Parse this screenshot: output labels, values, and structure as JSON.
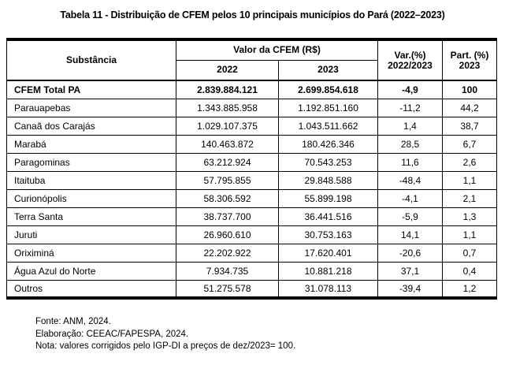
{
  "title": "Tabela 11 - Distribuição de CFEM pelos 10 principais municípios do Pará (2022–2023)",
  "table": {
    "headers": {
      "substance": "Substância",
      "value_group": "Valor da CFEM (R$)",
      "year_2022": "2022",
      "year_2023": "2023",
      "variation_line1": "Var.(%)",
      "variation_line2": "2022/2023",
      "participation_line1": "Part. (%)",
      "participation_line2": "2023"
    },
    "rows": [
      {
        "substance": "CFEM Total PA",
        "value_2022": "2.839.884.121",
        "value_2023": "2.699.854.618",
        "variation": "-4,9",
        "participation": "100"
      },
      {
        "substance": "Parauapebas",
        "value_2022": "1.343.885.958",
        "value_2023": "1.192.851.160",
        "variation": "-11,2",
        "participation": "44,2"
      },
      {
        "substance": "Canaã dos Carajás",
        "value_2022": "1.029.107.375",
        "value_2023": "1.043.511.662",
        "variation": "1,4",
        "participation": "38,7"
      },
      {
        "substance": "Marabá",
        "value_2022": "140.463.872",
        "value_2023": "180.426.346",
        "variation": "28,5",
        "participation": "6,7"
      },
      {
        "substance": "Paragominas",
        "value_2022": "63.212.924",
        "value_2023": "70.543.253",
        "variation": "11,6",
        "participation": "2,6"
      },
      {
        "substance": "Itaituba",
        "value_2022": "57.795.855",
        "value_2023": "29.848.588",
        "variation": "-48,4",
        "participation": "1,1"
      },
      {
        "substance": "Curionópolis",
        "value_2022": "58.306.592",
        "value_2023": "55.899.198",
        "variation": "-4,1",
        "participation": "2,1"
      },
      {
        "substance": "Terra Santa",
        "value_2022": "38.737.700",
        "value_2023": "36.441.516",
        "variation": "-5,9",
        "participation": "1,3"
      },
      {
        "substance": "Juruti",
        "value_2022": "26.960.610",
        "value_2023": "30.753.163",
        "variation": "14,1",
        "participation": "1,1"
      },
      {
        "substance": "Oriximiná",
        "value_2022": "22.202.922",
        "value_2023": "17.620.401",
        "variation": "-20,6",
        "participation": "0,7"
      },
      {
        "substance": "Água Azul do Norte",
        "value_2022": "7.934.735",
        "value_2023": "10.881.218",
        "variation": "37,1",
        "participation": "0,4"
      },
      {
        "substance": "Outros",
        "value_2022": "51.275.578",
        "value_2023": "31.078.113",
        "variation": "-39,4",
        "participation": "1,2"
      }
    ]
  },
  "footer": {
    "source": "Fonte: ANM, 2024.",
    "elaboration": "Elaboração: CEEAC/FAPESPA, 2024.",
    "note": "Nota: valores corrigidos pelo IGP-DI a preços de dez/2023= 100."
  }
}
